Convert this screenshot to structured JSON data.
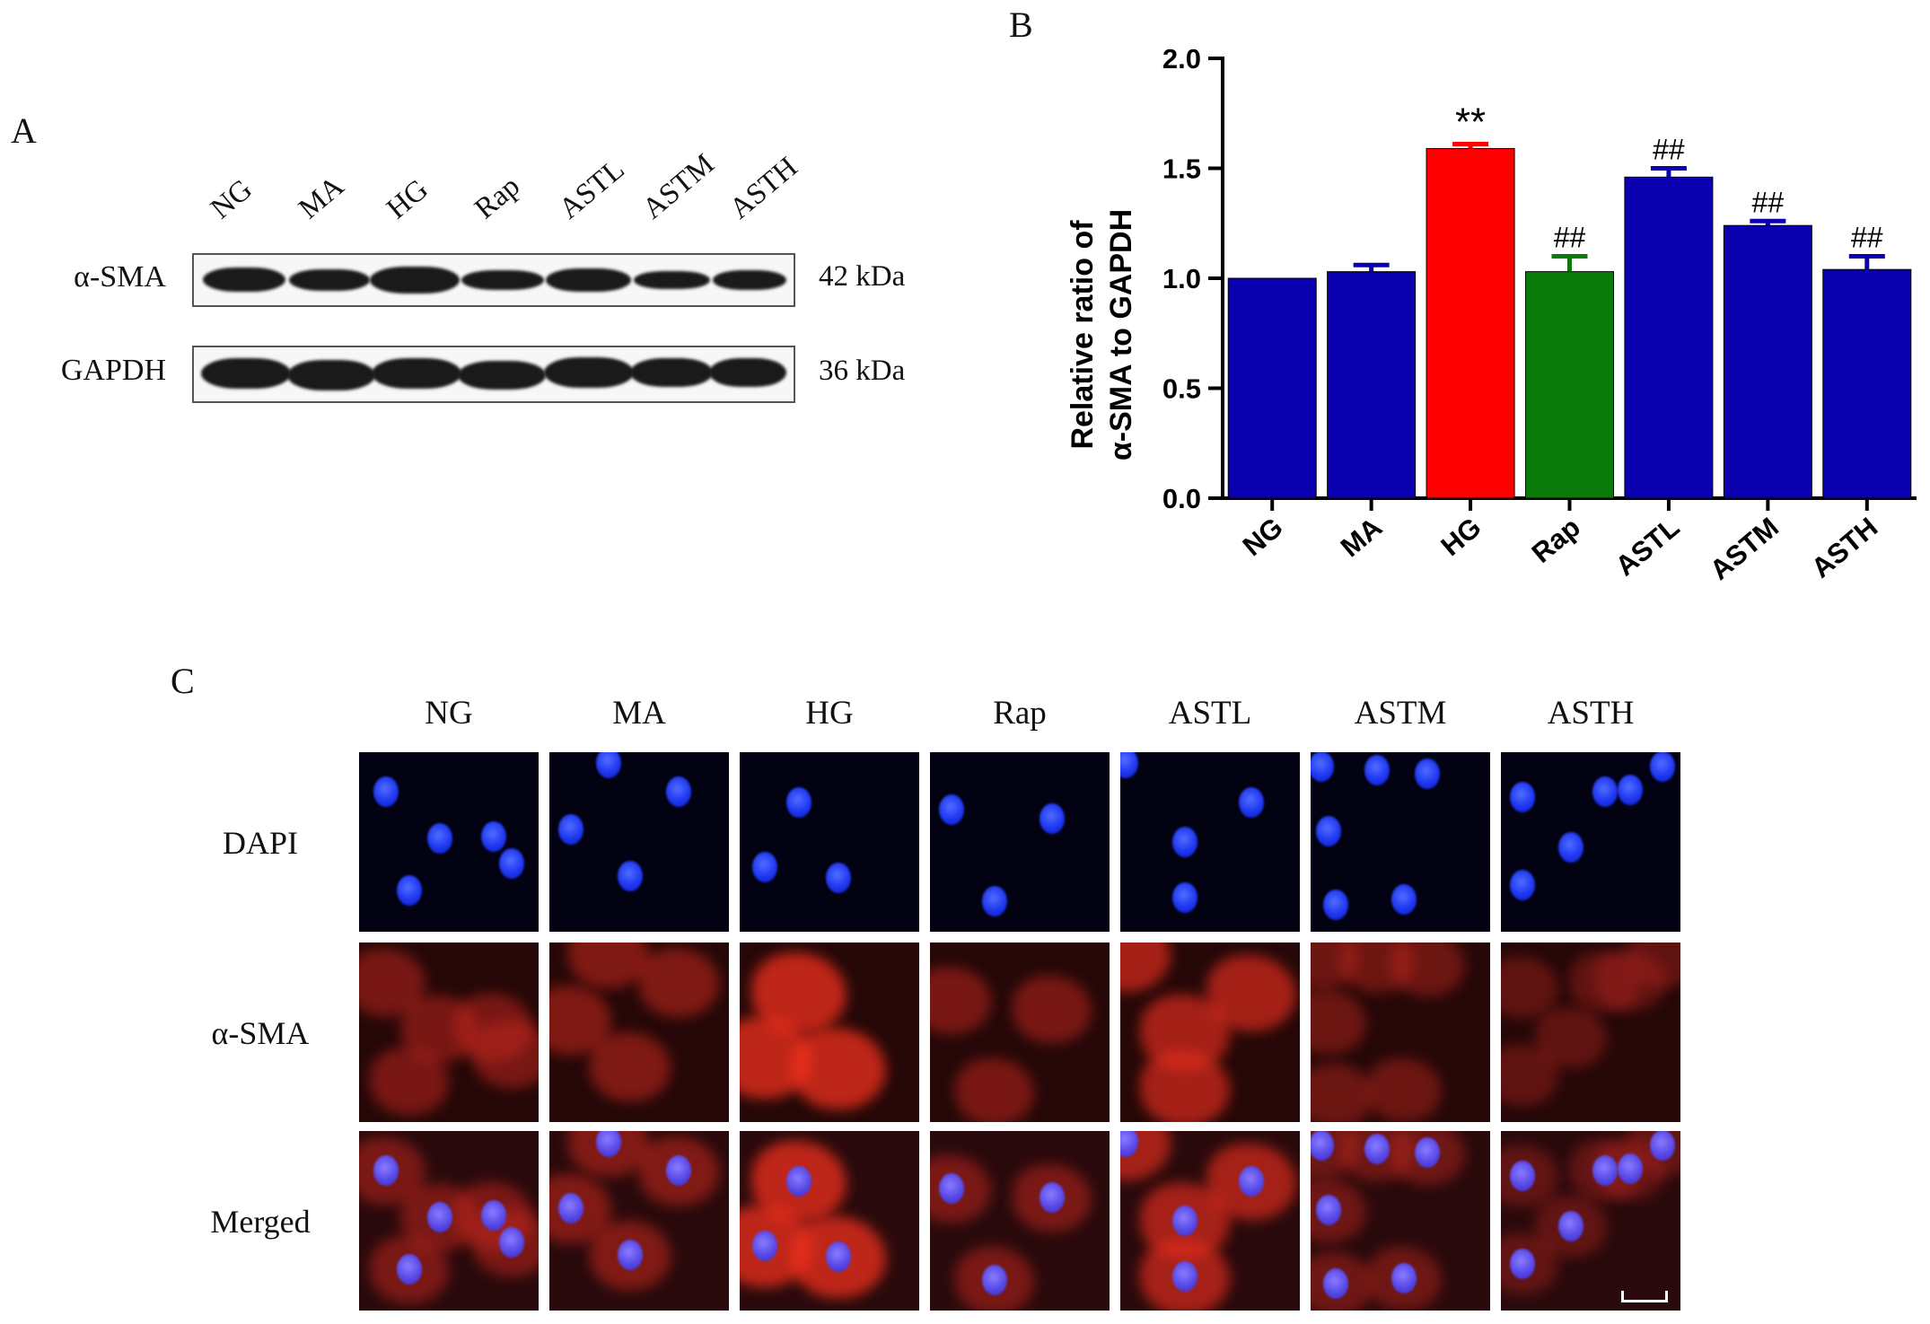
{
  "panels": {
    "a": "A",
    "b": "B",
    "c": "C"
  },
  "western_blot": {
    "lanes": [
      "NG",
      "MA",
      "HG",
      "Rap",
      "ASTL",
      "ASTM",
      "ASTH"
    ],
    "rows": [
      {
        "label": "α-SMA",
        "size": "42 kDa"
      },
      {
        "label": "GAPDH",
        "size": "36 kDa"
      }
    ]
  },
  "chart_data": {
    "type": "bar",
    "categories": [
      "NG",
      "MA",
      "HG",
      "Rap",
      "ASTL",
      "ASTM",
      "ASTH"
    ],
    "values": [
      1.0,
      1.03,
      1.59,
      1.03,
      1.46,
      1.24,
      1.04
    ],
    "errors": [
      0.0,
      0.03,
      0.02,
      0.07,
      0.04,
      0.02,
      0.06
    ],
    "annotations": [
      "",
      "",
      "**",
      "##",
      "##",
      "##",
      "##"
    ],
    "colors": [
      "#0a00b0",
      "#0a00b0",
      "#ff0000",
      "#0a7a0a",
      "#0a00b0",
      "#0a00b0",
      "#0a00b0"
    ],
    "ylabel": [
      "Relative ratio of",
      "α-SMA to GAPDH"
    ],
    "ylim": [
      0,
      2.0
    ],
    "yticks": [
      "0.0",
      "0.5",
      "1.0",
      "1.5",
      "2.0"
    ],
    "grid": false
  },
  "microscopy": {
    "columns": [
      "NG",
      "MA",
      "HG",
      "Rap",
      "ASTL",
      "ASTM",
      "ASTH"
    ],
    "rows": [
      "DAPI",
      "α-SMA",
      "Merged"
    ],
    "sma_intensity": [
      0.45,
      0.5,
      0.9,
      0.45,
      0.75,
      0.35,
      0.25
    ]
  }
}
